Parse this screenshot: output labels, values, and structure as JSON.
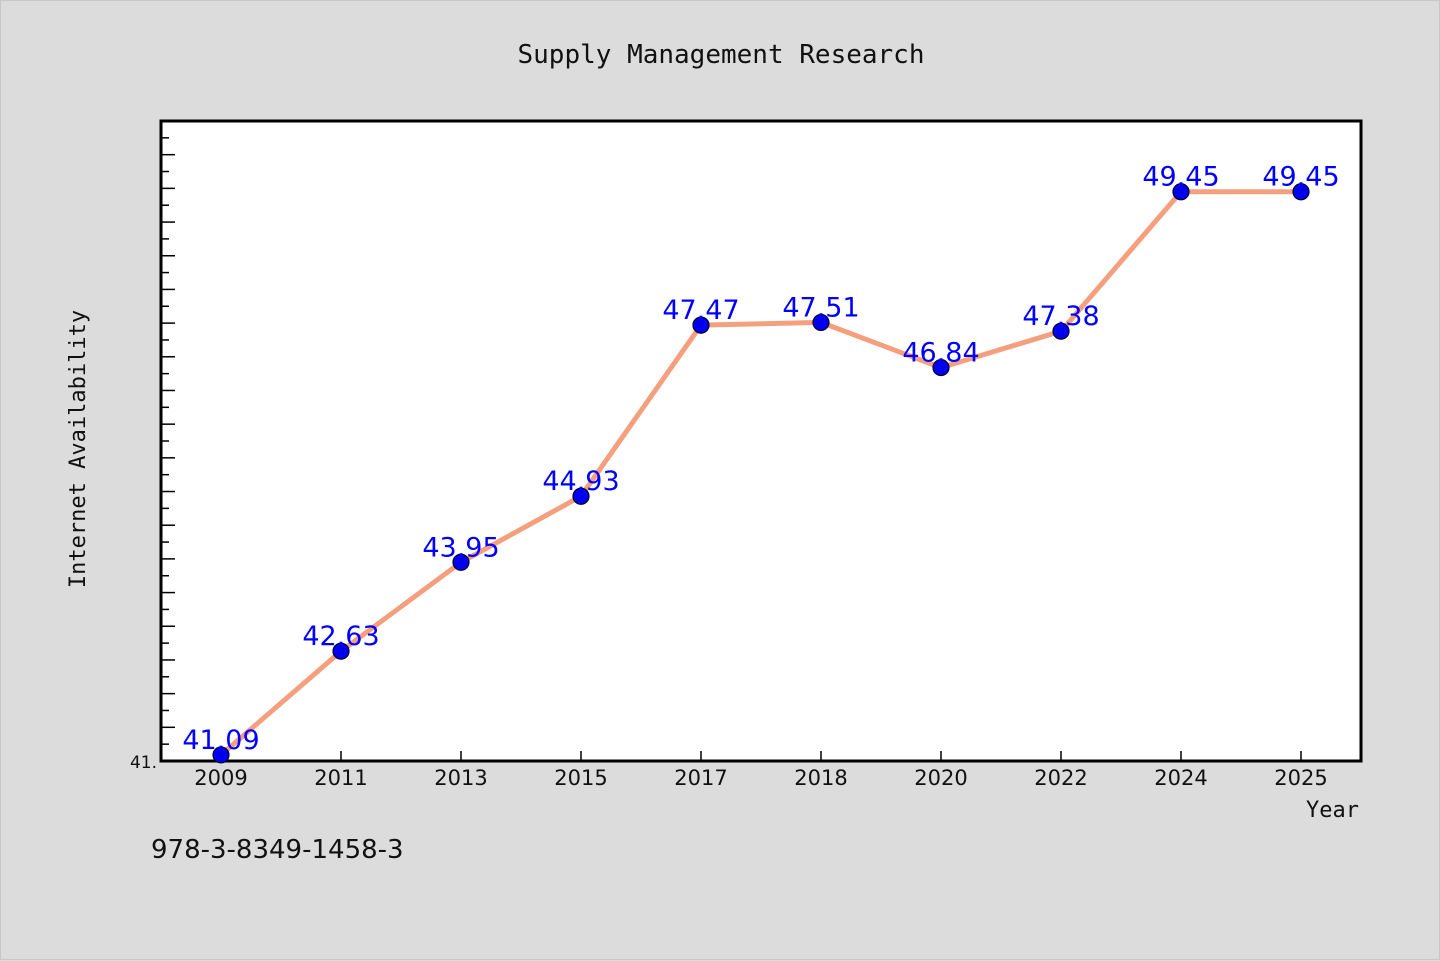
{
  "chart_data": {
    "type": "line",
    "title": "Supply Management Research",
    "xlabel": "Year",
    "ylabel": "Internet Availability",
    "categories": [
      "2009",
      "2011",
      "2013",
      "2015",
      "2017",
      "2018",
      "2020",
      "2022",
      "2024",
      "2025"
    ],
    "series": [
      {
        "values": [
          41.09,
          42.63,
          43.95,
          44.93,
          47.47,
          47.51,
          46.84,
          47.38,
          49.45,
          49.45
        ],
        "data_labels": [
          "41.09",
          "42.63",
          "43.95",
          "44.93",
          "47.47",
          "47.51",
          "46.84",
          "47.38",
          "49.45",
          "49.45"
        ]
      }
    ],
    "ylim": [
      41.0,
      50.5
    ],
    "y_tick_label": "41.",
    "grid": false,
    "legend": "none",
    "colors": {
      "line": "#f4a07f",
      "marker": "#0000ee",
      "data_label": "#0000ff",
      "plot_background": "#ffffff",
      "figure_background": "#dcdcdc"
    }
  },
  "footer_text": "978-3-8349-1458-3"
}
